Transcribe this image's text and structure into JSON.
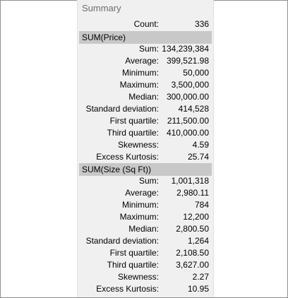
{
  "panel": {
    "title": "Summary",
    "count": {
      "label": "Count:",
      "value": "336"
    }
  },
  "sections": [
    {
      "header": "SUM(Price)",
      "rows": [
        {
          "label": "Sum:",
          "value": "134,239,384"
        },
        {
          "label": "Average:",
          "value": "399,521.98"
        },
        {
          "label": "Minimum:",
          "value": "50,000"
        },
        {
          "label": "Maximum:",
          "value": "3,500,000"
        },
        {
          "label": "Median:",
          "value": "300,000.00"
        },
        {
          "label": "Standard deviation:",
          "value": "414,528"
        },
        {
          "label": "First quartile:",
          "value": "211,500.00"
        },
        {
          "label": "Third quartile:",
          "value": "410,000.00"
        },
        {
          "label": "Skewness:",
          "value": "4.59"
        },
        {
          "label": "Excess Kurtosis:",
          "value": "25.74"
        }
      ]
    },
    {
      "header": "SUM(Size (Sq Ft))",
      "rows": [
        {
          "label": "Sum:",
          "value": "1,001,318"
        },
        {
          "label": "Average:",
          "value": "2,980.11"
        },
        {
          "label": "Minimum:",
          "value": "784"
        },
        {
          "label": "Maximum:",
          "value": "12,200"
        },
        {
          "label": "Median:",
          "value": "2,800.50"
        },
        {
          "label": "Standard deviation:",
          "value": "1,264"
        },
        {
          "label": "First quartile:",
          "value": "2,108.50"
        },
        {
          "label": "Third quartile:",
          "value": "3,627.00"
        },
        {
          "label": "Skewness:",
          "value": "2.27"
        },
        {
          "label": "Excess Kurtosis:",
          "value": "10.95"
        }
      ]
    }
  ]
}
